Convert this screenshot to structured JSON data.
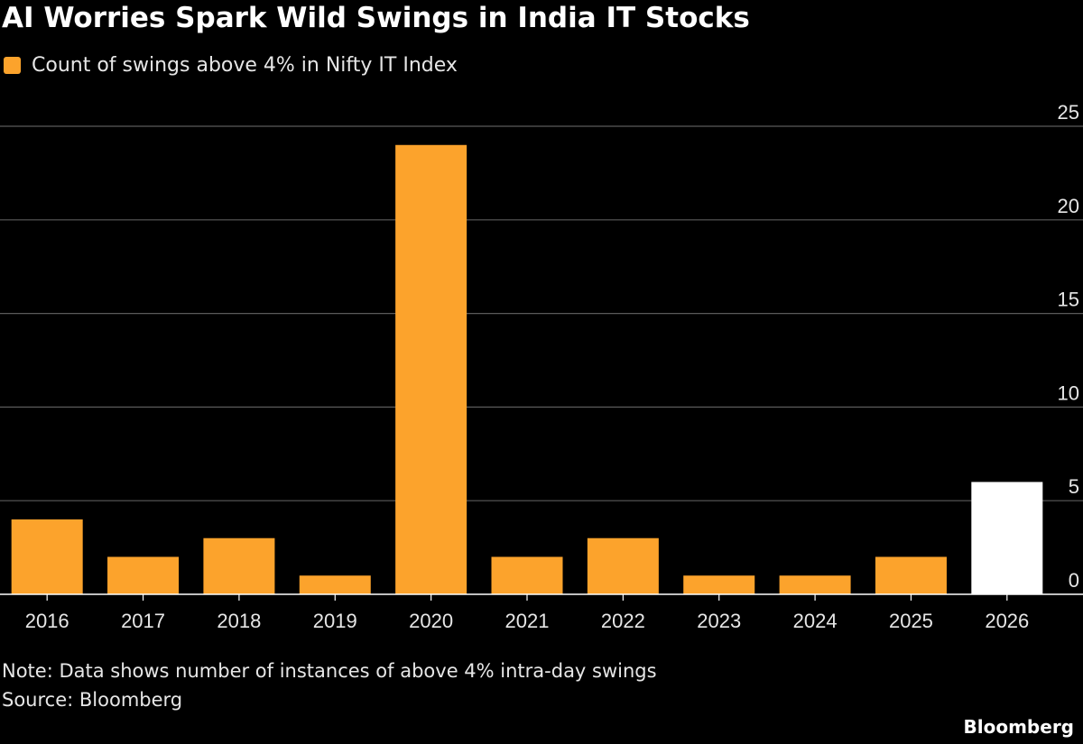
{
  "header": {
    "title": "AI Worries Spark Wild Swings in India IT Stocks"
  },
  "legend": {
    "label": "Count of swings above 4% in Nifty IT Index",
    "color": "#fca32c"
  },
  "footer": {
    "note": "Note: Data shows number of instances of above 4% intra-day swings",
    "source": "Source: Bloomberg",
    "brand": "Bloomberg"
  },
  "colors": {
    "background": "#000000",
    "bar": "#fca32c",
    "highlight_bar": "#ffffff",
    "grid": "#5a5a5a",
    "axis": "#ffffff"
  },
  "chart_data": {
    "type": "bar",
    "title": "AI Worries Spark Wild Swings in India IT Stocks",
    "xlabel": "",
    "ylabel": "",
    "categories": [
      "2016",
      "2017",
      "2018",
      "2019",
      "2020",
      "2021",
      "2022",
      "2023",
      "2024",
      "2025",
      "2026"
    ],
    "series": [
      {
        "name": "Count of swings above 4% in Nifty IT Index",
        "values": [
          4,
          2,
          3,
          1,
          24,
          2,
          3,
          1,
          1,
          2,
          6
        ]
      }
    ],
    "highlight_category": "2026",
    "ylim": [
      0,
      25
    ],
    "yticks": [
      0,
      5,
      10,
      15,
      20,
      25
    ],
    "y_axis_side": "right",
    "grid": true,
    "legend_position": "top-left"
  }
}
